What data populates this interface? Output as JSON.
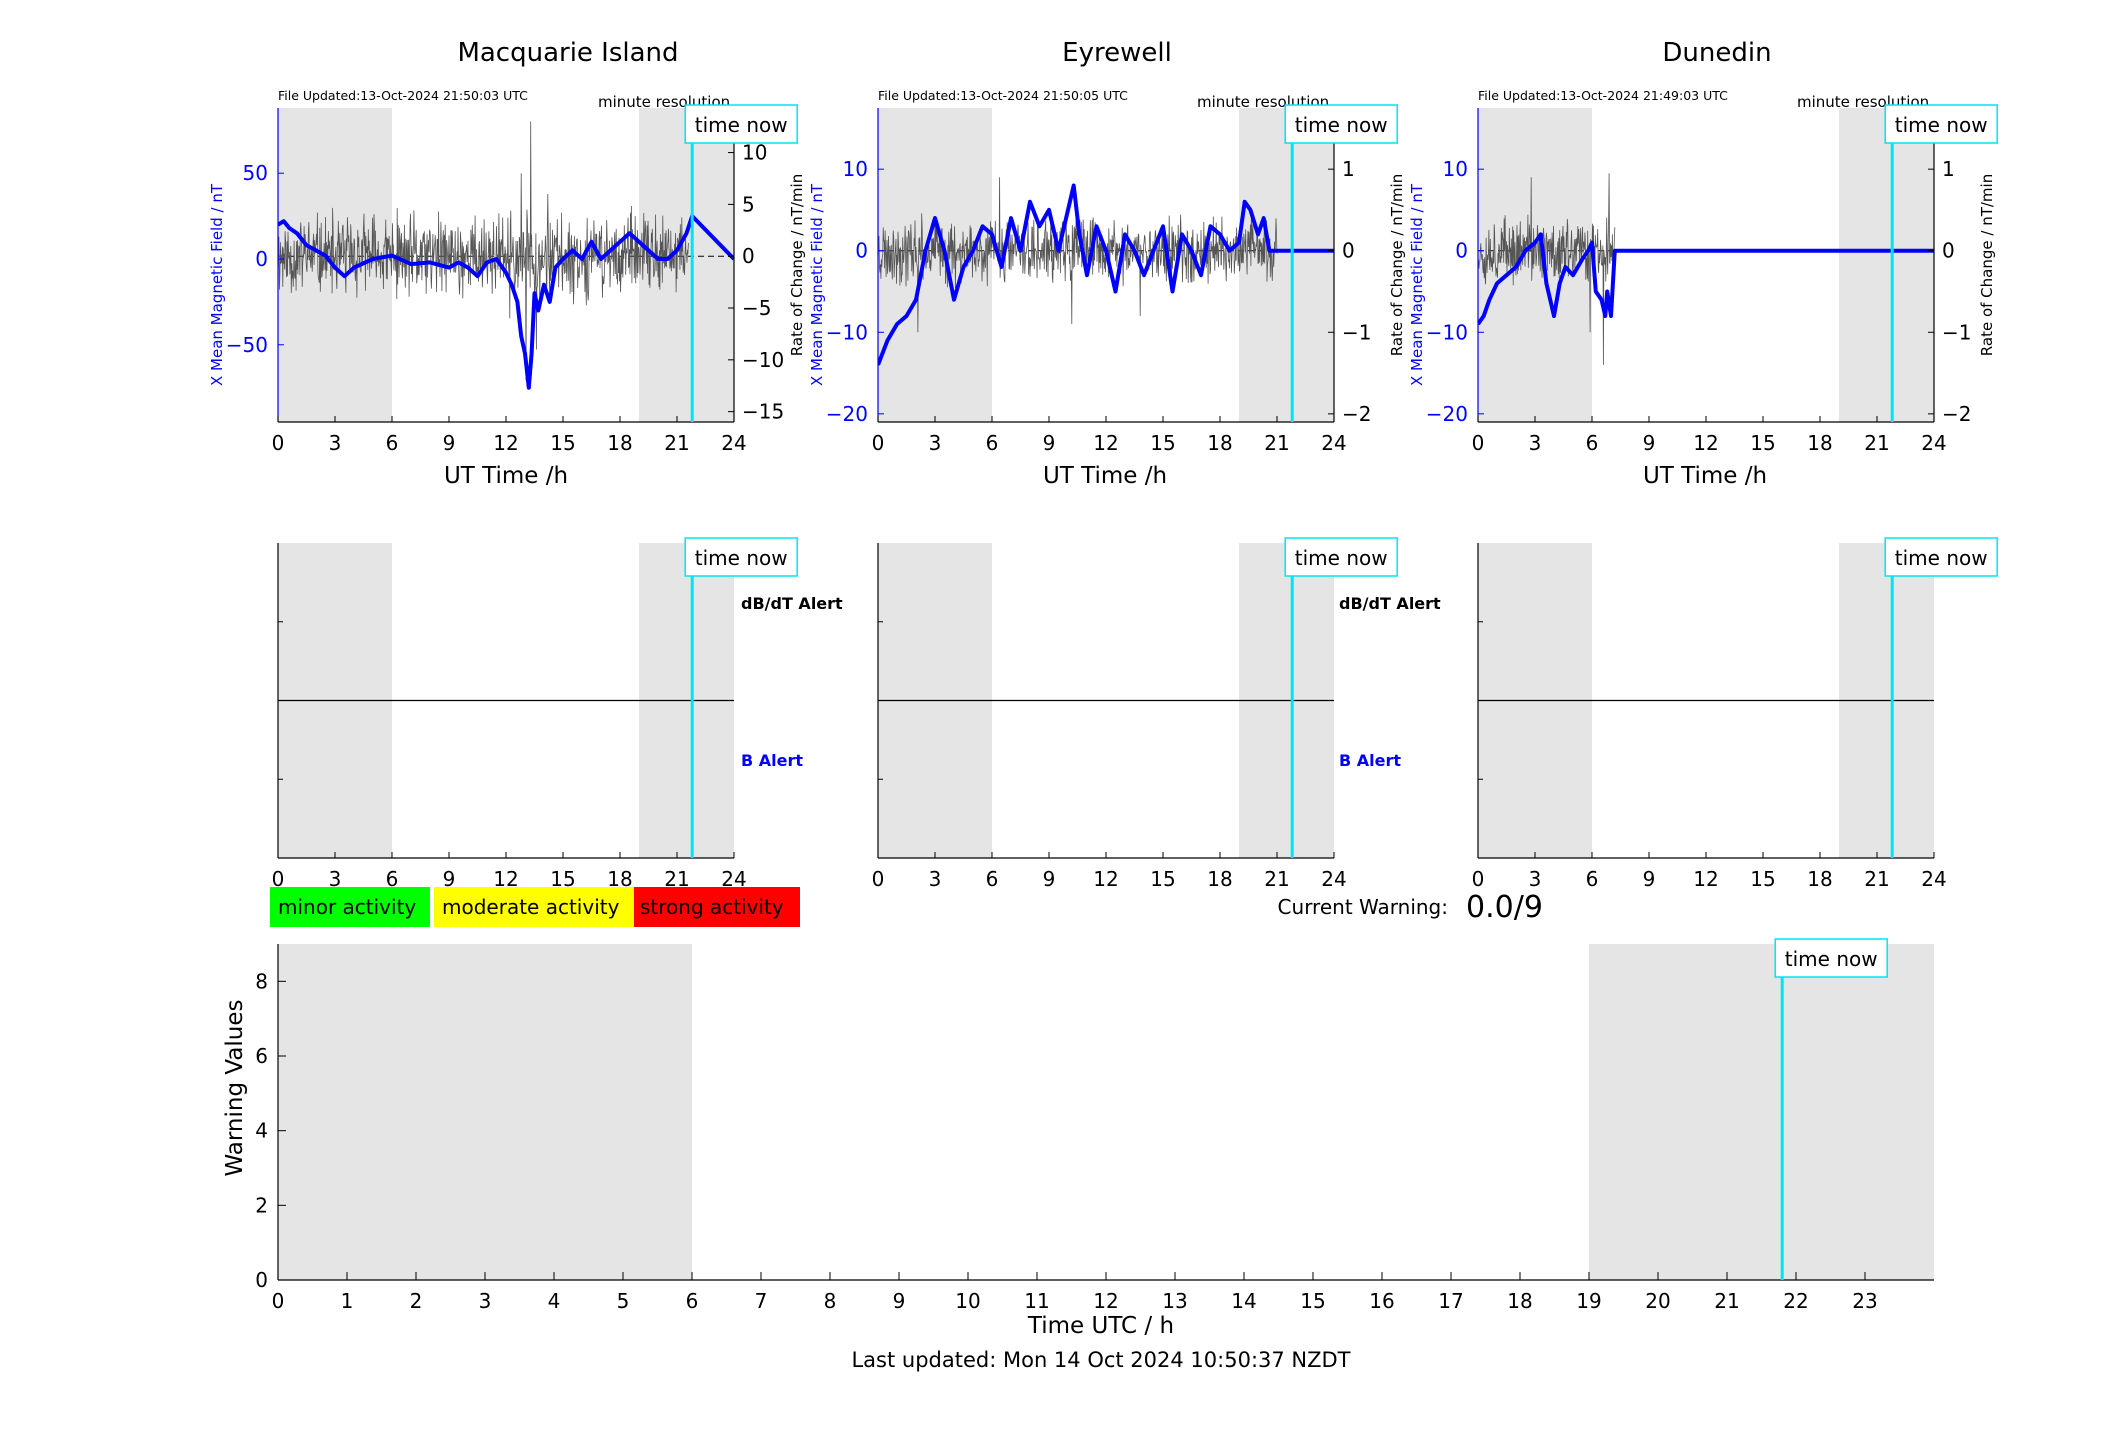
{
  "colors": {
    "mean_field": "#0000ff",
    "rate": "#000000",
    "night": "#e5e5e5",
    "time_now": "#00e5ee",
    "minor": "#00ff00",
    "moderate": "#ffff00",
    "strong": "#ff0000"
  },
  "labels": {
    "xlabel_station": "UT Time /h",
    "ylabel_left": "X Mean Magnetic Field / nT",
    "ylabel_right": "Rate of Change / nT/min",
    "resolution": "minute resolution",
    "time_now": "time now",
    "dbdt_alert": "dB/dT Alert",
    "b_alert": "B Alert",
    "legend_minor": "minor activity",
    "legend_moderate": "moderate activity",
    "legend_strong": "strong activity",
    "current_warning_label": "Current Warning:",
    "current_warning_value": "0.0/9",
    "bottom_xlabel": "Time UTC / h",
    "bottom_ylabel": "Warning Values",
    "last_updated": "Last updated: Mon 14 Oct 2024 10:50:37 NZDT"
  },
  "chart_data": [
    {
      "type": "line",
      "title": "Macquarie Island",
      "file_updated": "File Updated:13-Oct-2024 21:50:03 UTC",
      "xlim": [
        0,
        24
      ],
      "xticks": [
        0,
        3,
        6,
        9,
        12,
        15,
        18,
        21,
        24
      ],
      "ylim_left": [
        -95,
        88
      ],
      "yticks_left": [
        -50,
        0,
        50
      ],
      "ylim_right": [
        -16,
        14.3
      ],
      "yticks_right": [
        -15,
        -10,
        -5,
        0,
        5,
        10
      ],
      "night_spans": [
        [
          0,
          6
        ],
        [
          19,
          24
        ]
      ],
      "time_now": 21.8,
      "data_end": 21.8,
      "mean_field": {
        "x": [
          0,
          0.3,
          0.6,
          1.0,
          1.5,
          2.0,
          2.5,
          3.0,
          3.5,
          4.0,
          5.0,
          6.0,
          7.0,
          8.0,
          9.0,
          9.5,
          10.0,
          10.5,
          11.0,
          11.5,
          12.0,
          12.3,
          12.6,
          12.8,
          13.0,
          13.1,
          13.2,
          13.35,
          13.5,
          13.7,
          14.0,
          14.3,
          14.6,
          15.0,
          15.5,
          16.0,
          16.5,
          17.0,
          17.5,
          18.0,
          18.5,
          19.0,
          19.5,
          20.0,
          20.5,
          21.0,
          21.5,
          21.8,
          24.0
        ],
        "y": [
          20,
          22,
          18,
          15,
          8,
          5,
          2,
          -5,
          -10,
          -5,
          0,
          2,
          -3,
          -2,
          -5,
          -2,
          -5,
          -10,
          -2,
          0,
          -8,
          -15,
          -25,
          -45,
          -55,
          -65,
          -75,
          -55,
          -20,
          -30,
          -15,
          -25,
          -5,
          0,
          5,
          0,
          10,
          0,
          5,
          10,
          15,
          10,
          5,
          0,
          0,
          5,
          15,
          25,
          0
        ]
      },
      "rate": {
        "seed": 11,
        "x_end": 21.6,
        "noise": 3.5,
        "spikes": [
          {
            "x": 12.2,
            "y": -6
          },
          {
            "x": 12.8,
            "y": 8
          },
          {
            "x": 13.05,
            "y": -12
          },
          {
            "x": 13.3,
            "y": 13
          },
          {
            "x": 13.6,
            "y": -9
          },
          {
            "x": 14.2,
            "y": 6
          }
        ]
      }
    },
    {
      "type": "line",
      "title": "Eyrewell",
      "file_updated": "File Updated:13-Oct-2024 21:50:05 UTC",
      "xlim": [
        0,
        24
      ],
      "xticks": [
        0,
        3,
        6,
        9,
        12,
        15,
        18,
        21,
        24
      ],
      "ylim_left": [
        -21,
        17.5
      ],
      "yticks_left": [
        -20,
        -10,
        0,
        10
      ],
      "ylim_right": [
        -2.1,
        1.75
      ],
      "yticks_right": [
        -2,
        -1,
        0,
        1
      ],
      "night_spans": [
        [
          0,
          6
        ],
        [
          19,
          24
        ]
      ],
      "time_now": 21.8,
      "data_end": 21,
      "mean_field": {
        "x": [
          0,
          0.5,
          1.0,
          1.5,
          2.0,
          2.5,
          3.0,
          3.5,
          4.0,
          4.5,
          5.0,
          5.5,
          6.0,
          6.5,
          7.0,
          7.5,
          8.0,
          8.5,
          9.0,
          9.5,
          10.0,
          10.3,
          10.6,
          11.0,
          11.5,
          12.0,
          12.5,
          13.0,
          13.5,
          14.0,
          14.5,
          15.0,
          15.5,
          16.0,
          16.5,
          17.0,
          17.5,
          18.0,
          18.5,
          19.0,
          19.3,
          19.6,
          20.0,
          20.3,
          20.6,
          21.0,
          24.0
        ],
        "y": [
          -14,
          -11,
          -9,
          -8,
          -6,
          0,
          4,
          0,
          -6,
          -2,
          0,
          3,
          2,
          -2,
          4,
          0,
          6,
          3,
          5,
          0,
          5,
          8,
          2,
          -3,
          3,
          0,
          -5,
          2,
          0,
          -3,
          0,
          3,
          -5,
          2,
          0,
          -3,
          3,
          2,
          0,
          1,
          6,
          5,
          2,
          4,
          0,
          0,
          0
        ]
      },
      "rate": {
        "seed": 23,
        "x_end": 21.0,
        "noise": 0.35,
        "spikes": [
          {
            "x": 2.1,
            "y": -1.0
          },
          {
            "x": 6.4,
            "y": 0.9
          },
          {
            "x": 10.2,
            "y": -0.9
          },
          {
            "x": 13.8,
            "y": -0.8
          }
        ]
      }
    },
    {
      "type": "line",
      "title": "Dunedin",
      "file_updated": "File Updated:13-Oct-2024 21:49:03 UTC",
      "xlim": [
        0,
        24
      ],
      "xticks": [
        0,
        3,
        6,
        9,
        12,
        15,
        18,
        21,
        24
      ],
      "ylim_left": [
        -21,
        17.5
      ],
      "yticks_left": [
        -20,
        -10,
        0,
        10
      ],
      "ylim_right": [
        -2.1,
        1.75
      ],
      "yticks_right": [
        -2,
        -1,
        0,
        1
      ],
      "night_spans": [
        [
          0,
          6
        ],
        [
          19,
          24
        ]
      ],
      "time_now": 21.8,
      "data_end": 24,
      "mean_field": {
        "x": [
          0,
          0.3,
          0.6,
          1.0,
          1.5,
          2.0,
          2.5,
          3.0,
          3.3,
          3.6,
          3.8,
          4.0,
          4.3,
          4.6,
          5.0,
          5.5,
          5.8,
          6.0,
          6.2,
          6.5,
          6.7,
          6.8,
          7.0,
          7.2,
          24.0
        ],
        "y": [
          -9,
          -8,
          -6,
          -4,
          -3,
          -2,
          0,
          1,
          2,
          -4,
          -6,
          -8,
          -4,
          -2,
          -3,
          -1,
          0,
          1,
          -5,
          -6,
          -8,
          -5,
          -8,
          0,
          0
        ]
      },
      "rate": {
        "seed": 37,
        "x_end": 7.2,
        "noise": 0.35,
        "spikes": [
          {
            "x": 2.8,
            "y": 0.9
          },
          {
            "x": 5.9,
            "y": -1.0
          },
          {
            "x": 6.6,
            "y": -1.4
          },
          {
            "x": 6.9,
            "y": 0.95
          }
        ]
      }
    },
    {
      "type": "bar",
      "title": "",
      "xlabel": "Time UTC / h",
      "ylabel": "Warning Values",
      "xlim": [
        0,
        24
      ],
      "xticks": [
        0,
        1,
        2,
        3,
        4,
        5,
        6,
        7,
        8,
        9,
        10,
        11,
        12,
        13,
        14,
        15,
        16,
        17,
        18,
        19,
        20,
        21,
        22,
        23
      ],
      "ylim": [
        0,
        9
      ],
      "yticks": [
        0,
        2,
        4,
        6,
        8
      ],
      "night_spans": [
        [
          0,
          6
        ],
        [
          19,
          24
        ]
      ],
      "time_now": 21.8,
      "values": []
    }
  ]
}
